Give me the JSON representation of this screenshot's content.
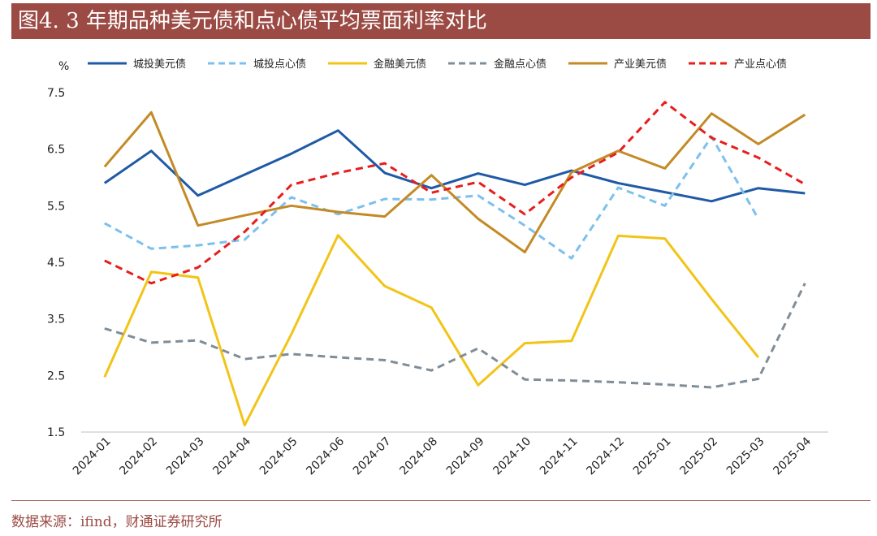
{
  "header": {
    "title": "图4. 3 年期品种美元债和点心债平均票面利率对比"
  },
  "source": {
    "text": "数据来源：ifind，财通证券研究所"
  },
  "colors": {
    "title_bg": "#9b4a44",
    "source_text": "#9b4a44"
  },
  "chart_data": {
    "type": "line",
    "title": "",
    "ylabel": "%",
    "xlabel": "",
    "ylim": [
      1.5,
      7.5
    ],
    "yticks": [
      "7.5",
      "6.5",
      "5.5",
      "4.5",
      "3.5",
      "2.5",
      "1.5"
    ],
    "grid": false,
    "legend_position": "top",
    "categories": [
      "2024-01",
      "2024-02",
      "2024-03",
      "2024-04",
      "2024-05",
      "2024-06",
      "2024-07",
      "2024-08",
      "2024-09",
      "2024-10",
      "2024-11",
      "2024-12",
      "2025-01",
      "2025-02",
      "2025-03",
      "2025-04"
    ],
    "series": [
      {
        "name": "城投美元债",
        "color": "#1f5aa6",
        "dash": "solid",
        "values": [
          5.9,
          6.47,
          5.68,
          6.05,
          6.42,
          6.83,
          6.08,
          5.81,
          6.07,
          5.87,
          6.12,
          5.9,
          5.74,
          5.58,
          5.81,
          5.72
        ]
      },
      {
        "name": "城投点心债",
        "color": "#7cc0ee",
        "dash": "dashed",
        "values": [
          5.19,
          4.74,
          4.8,
          4.9,
          5.65,
          5.35,
          5.62,
          5.61,
          5.68,
          5.15,
          4.57,
          5.82,
          5.5,
          6.72,
          5.27,
          null
        ]
      },
      {
        "name": "金融美元债",
        "color": "#f2c417",
        "dash": "solid",
        "values": [
          2.47,
          4.33,
          4.23,
          1.62,
          3.23,
          4.98,
          4.08,
          3.7,
          2.33,
          3.07,
          3.11,
          4.97,
          4.92,
          3.85,
          2.82,
          null
        ]
      },
      {
        "name": "金融点心债",
        "color": "#7f8d99",
        "dash": "dashed",
        "values": [
          3.33,
          3.08,
          3.12,
          2.79,
          2.88,
          2.82,
          2.77,
          2.59,
          2.98,
          2.43,
          2.41,
          2.38,
          2.34,
          2.29,
          2.44,
          4.13
        ]
      },
      {
        "name": "产业美元债",
        "color": "#c38a26",
        "dash": "solid",
        "values": [
          6.19,
          7.15,
          5.15,
          5.33,
          5.5,
          5.39,
          5.31,
          6.04,
          5.27,
          4.68,
          6.09,
          6.47,
          6.16,
          7.13,
          6.59,
          7.11
        ]
      },
      {
        "name": "产业点心债",
        "color": "#e81d1d",
        "dash": "dashed",
        "values": [
          4.53,
          4.13,
          4.41,
          5.04,
          5.87,
          6.08,
          6.25,
          5.73,
          5.92,
          5.35,
          6.0,
          6.44,
          7.33,
          6.7,
          6.35,
          5.88
        ]
      }
    ]
  }
}
